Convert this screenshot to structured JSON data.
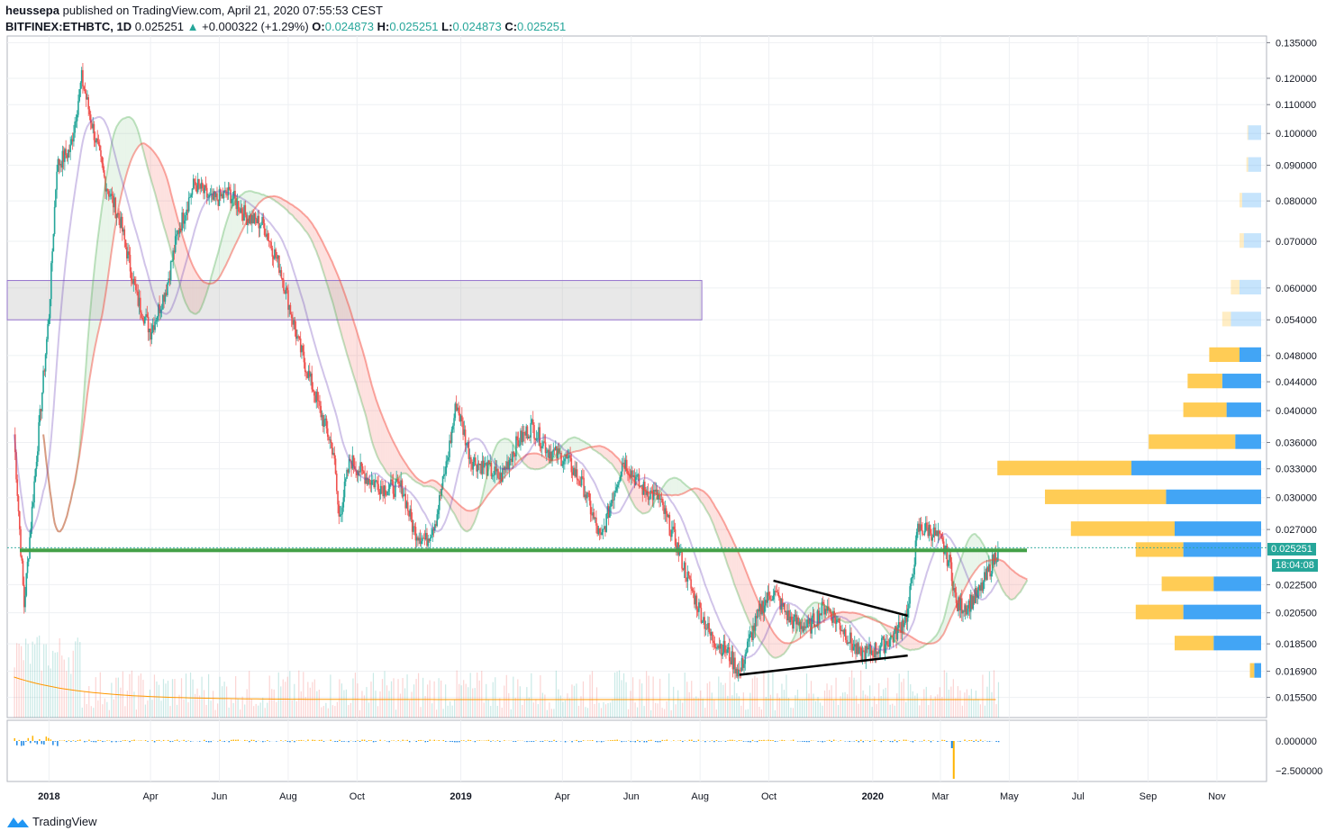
{
  "header": {
    "publisher": "heussepa",
    "published_text": "published on TradingView.com, April 21, 2020 07:55:53 CEST",
    "symbol": "BITFINEX:ETHBTC, 1D",
    "last": "0.025251",
    "change": "+0.000322 (+1.29%)",
    "o_label": "O:",
    "o": "0.024873",
    "h_label": "H:",
    "h": "0.025251",
    "l_label": "L:",
    "l": "0.024873",
    "c_label": "C:",
    "c": "0.025251"
  },
  "footer": {
    "brand": "TradingView"
  },
  "price_tag": {
    "value": "0.025251",
    "countdown": "18:04:08"
  },
  "colors": {
    "up": "#26a69a",
    "down": "#ef5350",
    "accent": "#26a69a",
    "vp_up": "#42a5f5",
    "vp_down": "#ffcc55"
  },
  "chart_data": {
    "type": "candlestick",
    "title": "BITFINEX:ETHBTC, 1D",
    "y_scale": "log",
    "price_ticks": [
      "0.135000",
      "0.120000",
      "0.110000",
      "0.100000",
      "0.090000",
      "0.080000",
      "0.070000",
      "0.060000",
      "0.054000",
      "0.048000",
      "0.044000",
      "0.040000",
      "0.036000",
      "0.033000",
      "0.030000",
      "0.027000",
      "0.022500",
      "0.020500",
      "0.018500",
      "0.016900",
      "0.015500"
    ],
    "x_ticks": [
      "2018",
      "Apr",
      "Jun",
      "Aug",
      "Oct",
      "2019",
      "Apr",
      "Jun",
      "Aug",
      "Oct",
      "2020",
      "Mar",
      "May",
      "Jul",
      "Sep",
      "Nov"
    ],
    "oscillator_ticks": [
      "0.000000",
      "−2.500000"
    ],
    "close_path": [
      [
        "2017-12-01",
        0.037
      ],
      [
        "2017-12-10",
        0.021
      ],
      [
        "2017-12-20",
        0.033
      ],
      [
        "2018-01-01",
        0.055
      ],
      [
        "2018-01-08",
        0.09
      ],
      [
        "2018-01-20",
        0.095
      ],
      [
        "2018-01-30",
        0.12
      ],
      [
        "2018-02-10",
        0.1
      ],
      [
        "2018-02-20",
        0.085
      ],
      [
        "2018-03-05",
        0.075
      ],
      [
        "2018-03-20",
        0.058
      ],
      [
        "2018-04-01",
        0.052
      ],
      [
        "2018-04-15",
        0.06
      ],
      [
        "2018-04-25",
        0.072
      ],
      [
        "2018-05-10",
        0.085
      ],
      [
        "2018-05-25",
        0.08
      ],
      [
        "2018-06-10",
        0.082
      ],
      [
        "2018-06-25",
        0.076
      ],
      [
        "2018-07-10",
        0.074
      ],
      [
        "2018-07-25",
        0.064
      ],
      [
        "2018-08-10",
        0.05
      ],
      [
        "2018-08-25",
        0.042
      ],
      [
        "2018-09-10",
        0.035
      ],
      [
        "2018-09-15",
        0.028
      ],
      [
        "2018-09-25",
        0.034
      ],
      [
        "2018-10-10",
        0.032
      ],
      [
        "2018-10-25",
        0.031
      ],
      [
        "2018-11-10",
        0.031
      ],
      [
        "2018-11-20",
        0.027
      ],
      [
        "2018-12-01",
        0.026
      ],
      [
        "2018-12-10",
        0.028
      ],
      [
        "2018-12-20",
        0.034
      ],
      [
        "2018-12-28",
        0.041
      ],
      [
        "2019-01-10",
        0.034
      ],
      [
        "2019-01-25",
        0.033
      ],
      [
        "2019-02-05",
        0.032
      ],
      [
        "2019-02-20",
        0.036
      ],
      [
        "2019-03-05",
        0.038
      ],
      [
        "2019-03-20",
        0.035
      ],
      [
        "2019-04-05",
        0.034
      ],
      [
        "2019-04-20",
        0.031
      ],
      [
        "2019-05-05",
        0.026
      ],
      [
        "2019-05-15",
        0.03
      ],
      [
        "2019-05-25",
        0.034
      ],
      [
        "2019-06-10",
        0.031
      ],
      [
        "2019-06-25",
        0.03
      ],
      [
        "2019-07-10",
        0.026
      ],
      [
        "2019-07-25",
        0.022
      ],
      [
        "2019-08-10",
        0.019
      ],
      [
        "2019-08-25",
        0.018
      ],
      [
        "2019-09-05",
        0.0168
      ],
      [
        "2019-09-15",
        0.019
      ],
      [
        "2019-09-25",
        0.021
      ],
      [
        "2019-10-05",
        0.022
      ],
      [
        "2019-10-20",
        0.02
      ],
      [
        "2019-11-05",
        0.0195
      ],
      [
        "2019-11-20",
        0.021
      ],
      [
        "2019-12-05",
        0.0195
      ],
      [
        "2019-12-20",
        0.0178
      ],
      [
        "2020-01-05",
        0.0182
      ],
      [
        "2020-01-20",
        0.019
      ],
      [
        "2020-02-01",
        0.0205
      ],
      [
        "2020-02-10",
        0.027
      ],
      [
        "2020-02-20",
        0.027
      ],
      [
        "2020-03-01",
        0.026
      ],
      [
        "2020-03-10",
        0.024
      ],
      [
        "2020-03-15",
        0.021
      ],
      [
        "2020-03-25",
        0.021
      ],
      [
        "2020-04-05",
        0.022
      ],
      [
        "2020-04-15",
        0.024
      ],
      [
        "2020-04-21",
        0.025251
      ]
    ],
    "annotations": {
      "support_line": 0.0252,
      "range_box": [
        0.054,
        0.0615
      ],
      "triangle_upper": [
        [
          "2019-10-05",
          0.0228
        ],
        [
          "2020-02-01",
          0.0203
        ]
      ],
      "triangle_lower": [
        [
          "2019-09-05",
          0.0167
        ],
        [
          "2020-02-01",
          0.0178
        ]
      ]
    },
    "volume_profile": [
      {
        "price": 0.0169,
        "up": 0.05,
        "down": 0.08
      },
      {
        "price": 0.0185,
        "up": 0.45,
        "down": 0.55
      },
      {
        "price": 0.0205,
        "up": 0.55,
        "down": 0.9
      },
      {
        "price": 0.0225,
        "up": 0.6,
        "down": 0.55
      },
      {
        "price": 0.0252,
        "up": 0.55,
        "down": 0.9
      },
      {
        "price": 0.027,
        "up": 1.2,
        "down": 1.0
      },
      {
        "price": 0.03,
        "up": 1.4,
        "down": 1.1
      },
      {
        "price": 0.033,
        "up": 1.55,
        "down": 1.5
      },
      {
        "price": 0.036,
        "up": 1.0,
        "down": 0.3
      },
      {
        "price": 0.04,
        "up": 0.5,
        "down": 0.4
      },
      {
        "price": 0.044,
        "up": 0.4,
        "down": 0.45
      },
      {
        "price": 0.048,
        "up": 0.35,
        "down": 0.25
      },
      {
        "price": 0.054,
        "up": 0.1,
        "down": 0.35
      },
      {
        "price": 0.06,
        "up": 0.1,
        "down": 0.25
      },
      {
        "price": 0.07,
        "up": 0.05,
        "down": 0.2
      },
      {
        "price": 0.08,
        "up": 0.03,
        "down": 0.22
      },
      {
        "price": 0.09,
        "up": 0.02,
        "down": 0.15
      },
      {
        "price": 0.1,
        "up": 0.01,
        "down": 0.15
      }
    ]
  }
}
